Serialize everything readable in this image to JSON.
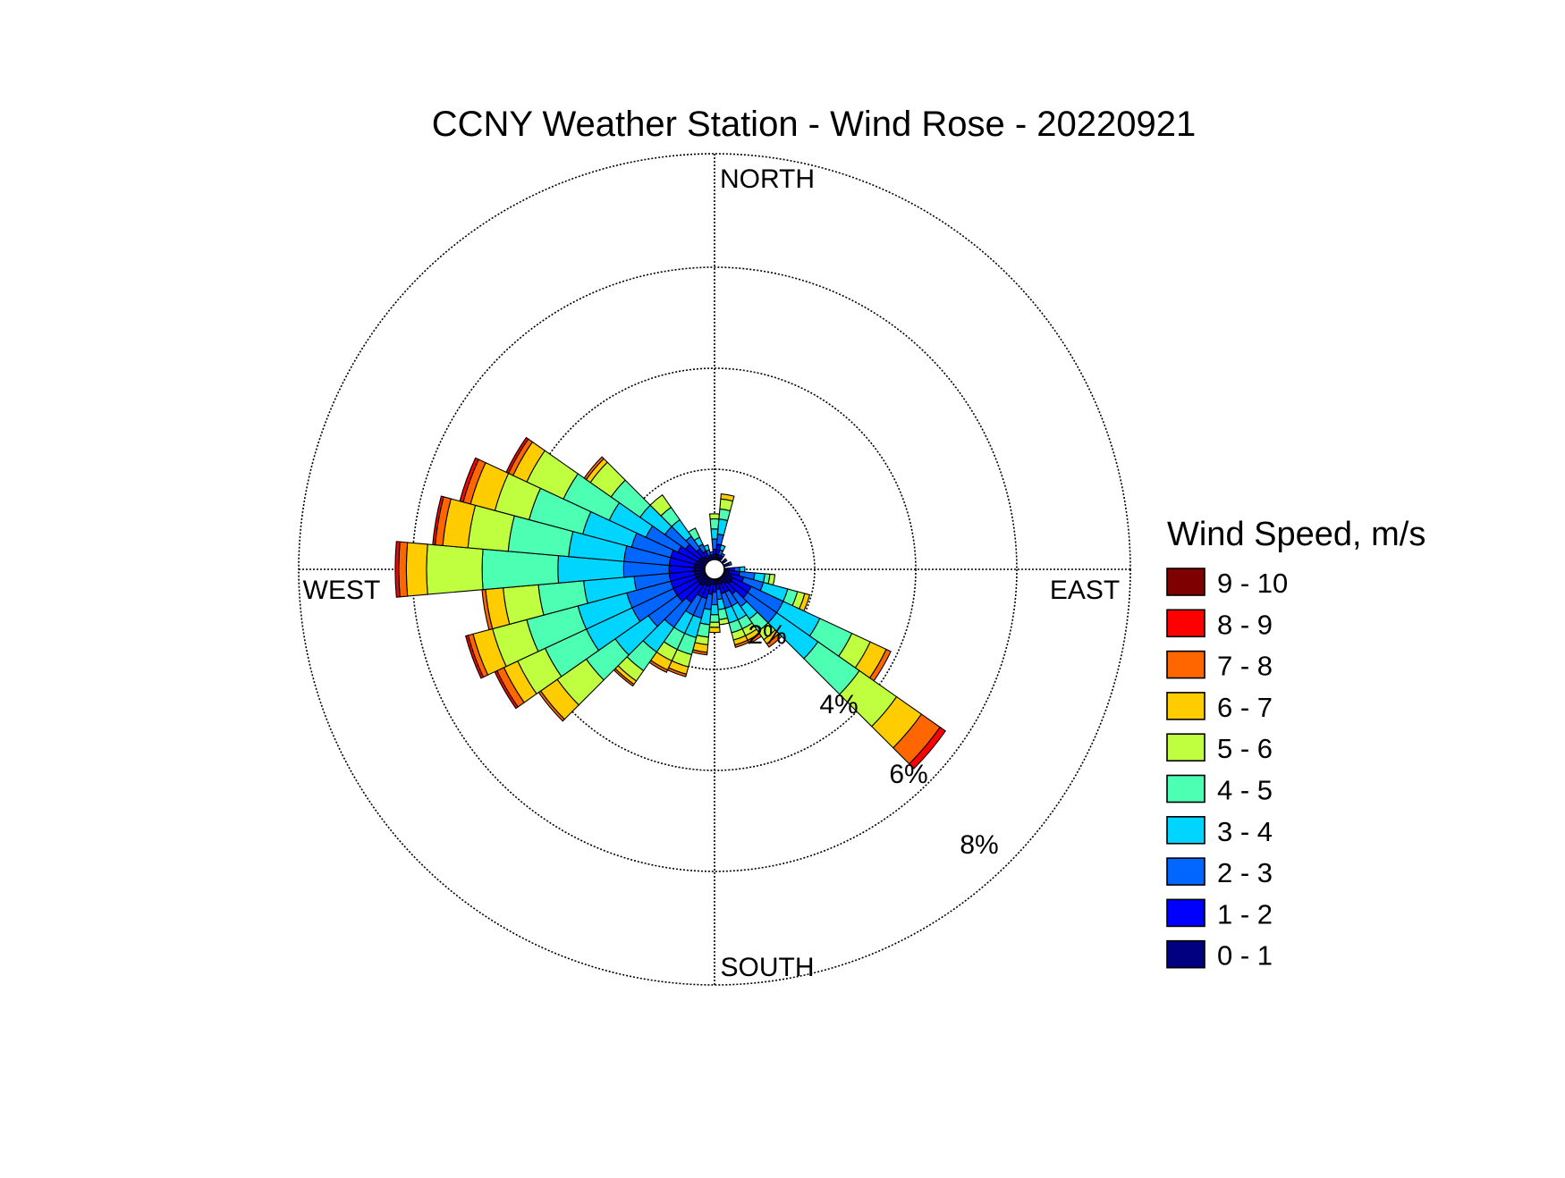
{
  "chart_data": {
    "type": "wind-rose",
    "title": "CCNY Weather Station - Wind Rose - 20220921",
    "directions": {
      "north": "NORTH",
      "south": "SOUTH",
      "east": "EAST",
      "west": "WEST"
    },
    "rings": [
      {
        "value": 2,
        "label": "2%"
      },
      {
        "value": 4,
        "label": "4%"
      },
      {
        "value": 6,
        "label": "6%"
      },
      {
        "value": 8,
        "label": "8%"
      }
    ],
    "legend": {
      "title": "Wind Speed, m/s",
      "position": "right",
      "bins": [
        {
          "label": "9 - 10",
          "color": "#7f0000"
        },
        {
          "label": "8 - 9",
          "color": "#ff0000"
        },
        {
          "label": "7 - 8",
          "color": "#ff6600"
        },
        {
          "label": "6 - 7",
          "color": "#ffcc00"
        },
        {
          "label": "5 - 6",
          "color": "#bfff40"
        },
        {
          "label": "4 - 5",
          "color": "#4dffb3"
        },
        {
          "label": "3 - 4",
          "color": "#00d5ff"
        },
        {
          "label": "2 - 3",
          "color": "#0066ff"
        },
        {
          "label": "1 - 2",
          "color": "#0000ff"
        },
        {
          "label": "0 - 1",
          "color": "#000080"
        }
      ]
    },
    "sector_width_deg": 10,
    "inner_radius_percent": 0.2,
    "bin_order": [
      "0 - 1",
      "1 - 2",
      "2 - 3",
      "3 - 4",
      "4 - 5",
      "5 - 6",
      "6 - 7",
      "7 - 8",
      "8 - 9",
      "9 - 10"
    ],
    "sectors": [
      {
        "dir": 0,
        "cum": [
          0.3,
          0.4,
          0.6,
          0.8,
          1.0,
          1.1
        ]
      },
      {
        "dir": 10,
        "cum": [
          0.3,
          0.5,
          0.7,
          1.0,
          1.2,
          1.4,
          1.5
        ]
      },
      {
        "dir": 20,
        "cum": [
          0.25,
          0.3,
          0.4,
          0.5
        ]
      },
      {
        "dir": 30,
        "cum": [
          0.25,
          0.3,
          0.35
        ]
      },
      {
        "dir": 50,
        "cum": [
          0.25,
          0.3
        ]
      },
      {
        "dir": 70,
        "cum": [
          0.25,
          0.3,
          0.35
        ]
      },
      {
        "dir": 90,
        "cum": [
          0.3,
          0.4,
          0.5,
          0.6
        ]
      },
      {
        "dir": 100,
        "cum": [
          0.3,
          0.5,
          0.8,
          1.0,
          1.1,
          1.2
        ]
      },
      {
        "dir": 110,
        "cum": [
          0.35,
          0.6,
          1.0,
          1.5,
          1.7,
          1.85,
          1.95
        ]
      },
      {
        "dir": 120,
        "cum": [
          0.4,
          0.8,
          1.5,
          2.3,
          3.0,
          3.4,
          3.75,
          3.85
        ]
      },
      {
        "dir": 130,
        "cum": [
          0.4,
          0.8,
          1.5,
          2.5,
          3.5,
          4.4,
          5.0,
          5.45,
          5.58
        ]
      },
      {
        "dir": 140,
        "cum": [
          0.35,
          0.6,
          0.9,
          1.2,
          1.5,
          1.7,
          1.8,
          1.88
        ]
      },
      {
        "dir": 150,
        "cum": [
          0.3,
          0.5,
          0.8,
          1.1,
          1.3,
          1.45,
          1.55,
          1.62
        ]
      },
      {
        "dir": 160,
        "cum": [
          0.3,
          0.5,
          0.8,
          1.1,
          1.3,
          1.45,
          1.55,
          1.6
        ]
      },
      {
        "dir": 170,
        "cum": [
          0.3,
          0.4,
          0.6,
          0.8,
          1.0,
          1.1
        ]
      },
      {
        "dir": 180,
        "cum": [
          0.3,
          0.45,
          0.7,
          0.9,
          1.05,
          1.15,
          1.25
        ]
      },
      {
        "dir": 190,
        "cum": [
          0.3,
          0.5,
          0.8,
          1.1,
          1.35,
          1.5,
          1.65,
          1.7
        ]
      },
      {
        "dir": 200,
        "cum": [
          0.35,
          0.6,
          1.0,
          1.4,
          1.75,
          2.0,
          2.15,
          2.2
        ]
      },
      {
        "dir": 210,
        "cum": [
          0.35,
          0.6,
          1.0,
          1.4,
          1.75,
          2.0,
          2.2,
          2.25
        ]
      },
      {
        "dir": 220,
        "cum": [
          0.4,
          0.8,
          1.4,
          2.0,
          2.45,
          2.7,
          2.78,
          2.82
        ]
      },
      {
        "dir": 230,
        "cum": [
          0.4,
          0.9,
          1.6,
          2.4,
          3.1,
          3.8,
          4.2,
          4.25
        ]
      },
      {
        "dir": 240,
        "cum": [
          0.4,
          0.9,
          1.8,
          2.8,
          3.7,
          4.3,
          4.6,
          4.75,
          4.8
        ]
      },
      {
        "dir": 250,
        "cum": [
          0.4,
          0.9,
          1.8,
          2.8,
          3.85,
          4.55,
          4.95,
          5.05,
          5.1
        ]
      },
      {
        "dir": 260,
        "cum": [
          0.4,
          0.9,
          1.6,
          2.6,
          3.5,
          4.2,
          4.55,
          4.62
        ]
      },
      {
        "dir": 270,
        "cum": [
          0.4,
          0.9,
          1.8,
          3.1,
          4.6,
          5.7,
          6.1,
          6.25,
          6.32
        ]
      },
      {
        "dir": 280,
        "cum": [
          0.4,
          0.9,
          1.8,
          2.9,
          4.1,
          4.9,
          5.4,
          5.55,
          5.6
        ]
      },
      {
        "dir": 290,
        "cum": [
          0.4,
          0.9,
          1.7,
          2.7,
          3.8,
          4.5,
          5.0,
          5.15,
          5.22
        ]
      },
      {
        "dir": 300,
        "cum": [
          0.35,
          0.8,
          1.5,
          2.3,
          3.3,
          4.1,
          4.4,
          4.5,
          4.55
        ]
      },
      {
        "dir": 310,
        "cum": [
          0.35,
          0.7,
          1.2,
          1.8,
          2.5,
          3.0,
          3.1,
          3.15
        ]
      },
      {
        "dir": 320,
        "cum": [
          0.3,
          0.5,
          0.8,
          1.2,
          1.5,
          1.8
        ]
      },
      {
        "dir": 330,
        "cum": [
          0.25,
          0.4,
          0.55,
          0.7,
          0.9
        ]
      },
      {
        "dir": 340,
        "cum": [
          0.25,
          0.3,
          0.4,
          0.5
        ]
      },
      {
        "dir": 350,
        "cum": [
          0.25,
          0.3,
          0.35
        ]
      }
    ]
  }
}
